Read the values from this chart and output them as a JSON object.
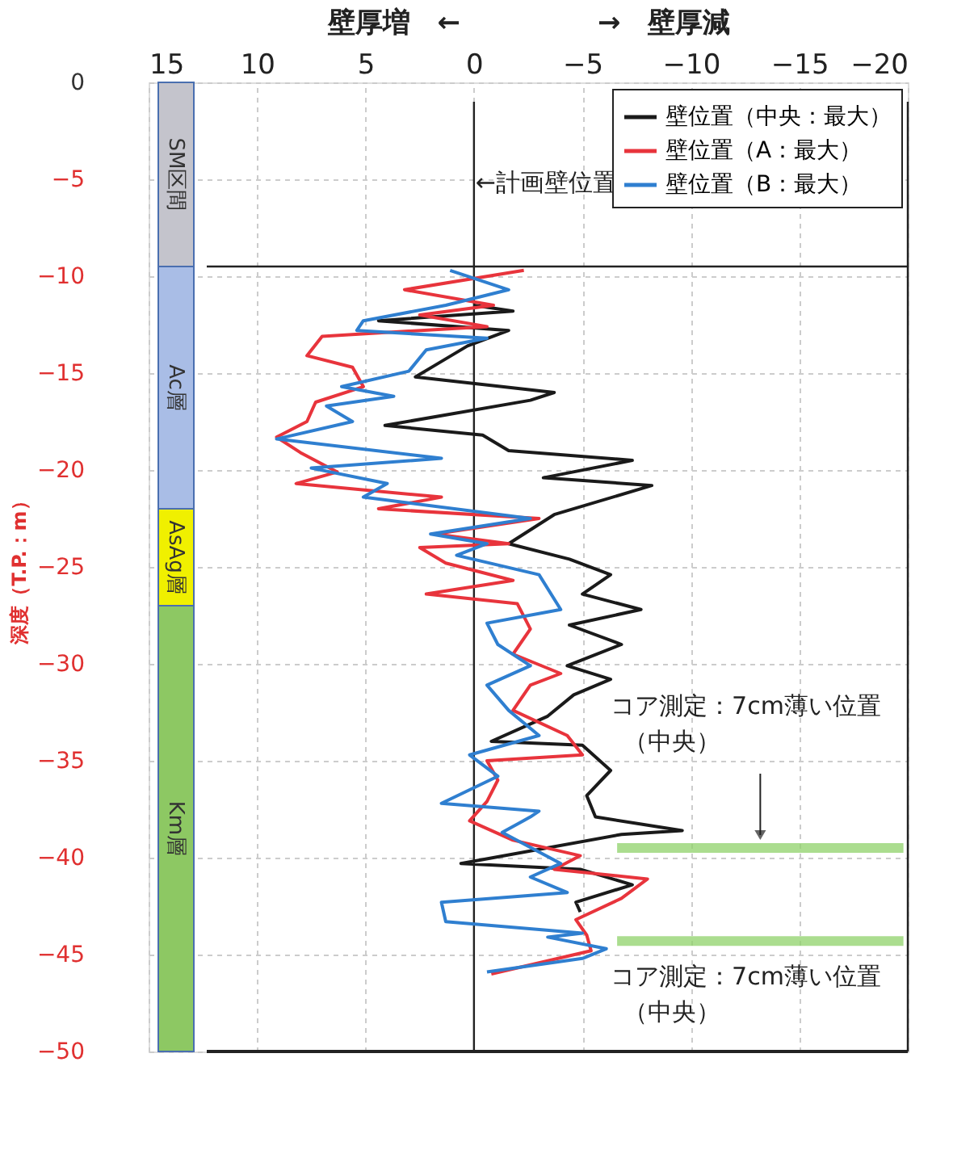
{
  "chart_data": {
    "type": "line",
    "xlabel": "壁厚増　←　　　　　→　壁厚減",
    "ylabel": "深度（T.P.：m）",
    "xlim": [
      15,
      -20
    ],
    "xticks": [
      15,
      10,
      5,
      0,
      -5,
      -10,
      -15,
      -20
    ],
    "ylim": [
      -50,
      0
    ],
    "yticks": [
      0,
      -5,
      -10,
      -15,
      -20,
      -25,
      -30,
      -35,
      -40,
      -45,
      -50
    ],
    "grid": true,
    "legend": "top right",
    "marker": "none",
    "line_style": "solid",
    "series": [
      {
        "name": "壁位置（中央：最大）",
        "color": "#1a1a1a",
        "x": [
          0,
          -1.8,
          4.4,
          -1.6,
          0.3,
          1.8,
          2.7,
          -3.7,
          -2.6,
          4.1,
          -0.4,
          -1.6,
          -7.3,
          -3.2,
          -8.2,
          -3.7,
          -1.6,
          -4.4,
          -6.3,
          -5.0,
          -7.7,
          -4.4,
          -6.8,
          -4.3,
          -6.3,
          -4.6,
          -3.4,
          -0.8,
          -5.0,
          -6.3,
          -5.2,
          -5.6,
          -9.6,
          -6.8,
          0.6,
          -4.9,
          -7.3,
          -4.7,
          -4.9
        ],
        "values": [
          -11.5,
          -11.8,
          -12.3,
          -12.8,
          -13.6,
          -14.6,
          -15.2,
          -16.0,
          -16.4,
          -17.7,
          -18.2,
          -19.0,
          -19.5,
          -20.4,
          -20.8,
          -22.3,
          -23.8,
          -24.6,
          -25.4,
          -26.4,
          -27.2,
          -28.0,
          -29.0,
          -30.1,
          -30.8,
          -31.6,
          -32.7,
          -34.0,
          -34.2,
          -35.5,
          -36.8,
          -37.9,
          -38.6,
          -38.8,
          -40.3,
          -40.6,
          -41.4,
          -42.3,
          -42.8
        ]
      },
      {
        "name": "壁位置（A：最大）",
        "color": "#e8343c",
        "x": [
          -2.3,
          3.2,
          -0.9,
          2.5,
          -0.6,
          7.0,
          7.7,
          5.6,
          5.1,
          7.3,
          7.7,
          9.1,
          8.0,
          6.3,
          8.2,
          1.5,
          4.4,
          -3.0,
          1.8,
          -1.6,
          2.5,
          1.3,
          -1.8,
          2.2,
          -2.0,
          -2.6,
          -1.8,
          -4.0,
          -2.6,
          -1.8,
          -4.3,
          -5.0,
          -0.6,
          -1.1,
          -0.6,
          0.2,
          -1.8,
          -4.9,
          -3.7,
          -8.0,
          -6.8,
          -4.7,
          -5.2,
          -5.4,
          -0.8
        ],
        "values": [
          -9.7,
          -10.7,
          -11.5,
          -12.0,
          -12.6,
          -13.1,
          -14.1,
          -14.7,
          -15.7,
          -16.5,
          -17.5,
          -18.3,
          -19.1,
          -20.1,
          -20.7,
          -21.4,
          -22.0,
          -22.5,
          -23.3,
          -23.8,
          -24.0,
          -24.8,
          -25.7,
          -26.4,
          -26.9,
          -28.2,
          -29.5,
          -30.5,
          -31.1,
          -32.4,
          -33.7,
          -34.7,
          -35.0,
          -36.0,
          -37.1,
          -38.1,
          -39.1,
          -39.9,
          -40.6,
          -41.1,
          -42.1,
          -43.2,
          -44.0,
          -44.8,
          -46.0
        ]
      },
      {
        "name": "壁位置（B：最大）",
        "color": "#2f7fd0",
        "x": [
          1.1,
          -1.6,
          1.3,
          5.1,
          5.4,
          -0.6,
          2.2,
          3.0,
          6.1,
          3.7,
          6.8,
          5.6,
          9.1,
          1.5,
          7.5,
          4.0,
          5.1,
          -2.6,
          2.0,
          -0.6,
          0.8,
          -3.0,
          -4.0,
          -0.6,
          -1.1,
          -2.6,
          -0.6,
          -1.6,
          -3.0,
          0.2,
          -1.1,
          1.5,
          -3.0,
          -2.6,
          -1.3,
          -4.0,
          -2.6,
          -4.3,
          1.5,
          1.3,
          -5.0,
          -3.4,
          -6.1,
          -5.0,
          -0.6
        ],
        "values": [
          -9.7,
          -10.7,
          -11.5,
          -12.3,
          -12.8,
          -13.2,
          -13.8,
          -14.9,
          -15.7,
          -16.2,
          -16.7,
          -17.5,
          -18.4,
          -19.4,
          -19.9,
          -20.7,
          -21.4,
          -22.5,
          -23.3,
          -23.8,
          -24.4,
          -25.4,
          -27.2,
          -27.9,
          -29.0,
          -30.1,
          -31.1,
          -32.4,
          -33.7,
          -34.7,
          -35.8,
          -37.2,
          -37.6,
          -37.9,
          -38.7,
          -40.3,
          -41.0,
          -41.8,
          -42.3,
          -43.3,
          -43.9,
          -44.1,
          -44.7,
          -45.2,
          -45.9
        ]
      },
      {
        "color": "#8fd16a",
        "x": [
          -6.6,
          -19.8
        ],
        "values": [
          -39.5,
          -39.5
        ]
      },
      {
        "color": "#8fd16a",
        "x": [
          -6.6,
          -19.8
        ],
        "values": [
          -44.3,
          -44.3
        ]
      }
    ],
    "bands": [
      {
        "axis": "y",
        "from": 0,
        "to": -9.5,
        "label": "SM区間",
        "color": "#c4c4cc"
      },
      {
        "axis": "y",
        "from": -9.5,
        "to": -22,
        "label": "Ac層",
        "color": "#a9bde6"
      },
      {
        "axis": "y",
        "from": -22,
        "to": -27,
        "label": "AsAg層",
        "color": "#f0f000"
      },
      {
        "axis": "y",
        "from": -27,
        "to": -50,
        "label": "Km層",
        "color": "#8dc863"
      }
    ],
    "ref_lines": [
      {
        "axis": "x",
        "value": 0,
        "label": "←計画壁位置",
        "color": "#222222"
      },
      {
        "axis": "x",
        "value": -20,
        "color": "#222222"
      },
      {
        "axis": "y",
        "value": -9.5,
        "color": "#222222"
      }
    ],
    "annotations": [
      "コア測定：7cm薄い位置",
      "（中央）",
      "コア測定：7cm薄い位置",
      "（中央）"
    ]
  }
}
